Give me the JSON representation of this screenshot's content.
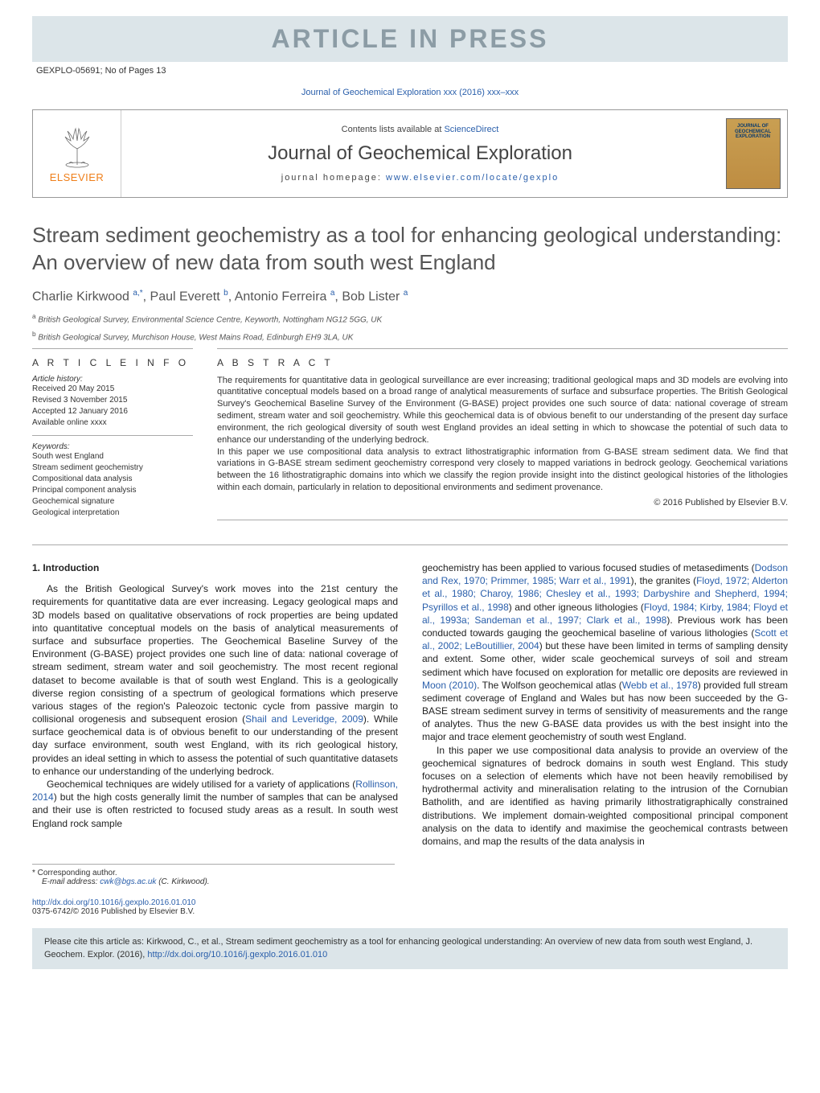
{
  "banner": {
    "text": "ARTICLE IN PRESS",
    "doc_id": "GEXPLO-05691; No of Pages 13"
  },
  "journal_ref": "Journal of Geochemical Exploration xxx (2016) xxx–xxx",
  "header": {
    "contents_prefix": "Contents lists available at ",
    "contents_link": "ScienceDirect",
    "journal_title": "Journal of Geochemical Exploration",
    "homepage_prefix": "journal homepage: ",
    "homepage_url": "www.elsevier.com/locate/gexplo",
    "elsevier_text": "ELSEVIER",
    "cover_title": "JOURNAL OF GEOCHEMICAL EXPLORATION",
    "cover_jge": "JGE"
  },
  "article": {
    "title": "Stream sediment geochemistry as a tool for enhancing geological understanding: An overview of new data from south west England",
    "authors_html": "Charlie Kirkwood <sup>a,*</sup>, Paul Everett <sup>b</sup>, Antonio Ferreira <sup>a</sup>, Bob Lister <sup>a</sup>",
    "aff_a": "a  British Geological Survey, Environmental Science Centre, Keyworth, Nottingham NG12 5GG, UK",
    "aff_b": "b  British Geological Survey, Murchison House, West Mains Road, Edinburgh EH9 3LA, UK"
  },
  "info": {
    "heading": "A R T I C L E   I N F O",
    "history_label": "Article history:",
    "received": "Received 20 May 2015",
    "revised": "Revised 3 November 2015",
    "accepted": "Accepted 12 January 2016",
    "available": "Available online xxxx",
    "keywords_label": "Keywords:",
    "keywords": [
      "South west England",
      "Stream sediment geochemistry",
      "Compositional data analysis",
      "Principal component analysis",
      "Geochemical signature",
      "Geological interpretation"
    ]
  },
  "abstract": {
    "heading": "A B S T R A C T",
    "para1": "The requirements for quantitative data in geological surveillance are ever increasing; traditional geological maps and 3D models are evolving into quantitative conceptual models based on a broad range of analytical measurements of surface and subsurface properties. The British Geological Survey's Geochemical Baseline Survey of the Environment (G-BASE) project provides one such source of data: national coverage of stream sediment, stream water and soil geochemistry. While this geochemical data is of obvious benefit to our understanding of the present day surface environment, the rich geological diversity of south west England provides an ideal setting in which to showcase the potential of such data to enhance our understanding of the underlying bedrock.",
    "para2": "In this paper we use compositional data analysis to extract lithostratigraphic information from G-BASE stream sediment data. We find that variations in G-BASE stream sediment geochemistry correspond very closely to mapped variations in bedrock geology. Geochemical variations between the 16 lithostratigraphic domains into which we classify the region provide insight into the distinct geological histories of the lithologies within each domain, particularly in relation to depositional environments and sediment provenance.",
    "copyright": "© 2016 Published by Elsevier B.V."
  },
  "body": {
    "section_title": "1. Introduction",
    "left_p1": "As the British Geological Survey's work moves into the 21st century the requirements for quantitative data are ever increasing. Legacy geological maps and 3D models based on qualitative observations of rock properties are being updated into quantitative conceptual models on the basis of analytical measurements of surface and subsurface properties. The Geochemical Baseline Survey of the Environment (G-BASE) project provides one such line of data: national coverage of stream sediment, stream water and soil geochemistry. The most recent regional dataset to become available is that of south west England. This is a geologically diverse region consisting of a spectrum of geological formations which preserve various stages of the region's Paleozoic tectonic cycle from passive margin to collisional orogenesis and subsequent erosion (",
    "left_p1_ref": "Shail and Leveridge, 2009",
    "left_p1_end": "). While surface geochemical data is of obvious benefit to our understanding of the present day surface environment, south west England, with its rich geological history, provides an ideal setting in which to assess the potential of such quantitative datasets to enhance our understanding of the underlying bedrock.",
    "left_p2_start": "Geochemical techniques are widely utilised for a variety of applications (",
    "left_p2_ref": "Rollinson, 2014",
    "left_p2_end": ") but the high costs generally limit the number of samples that can be analysed and their use is often restricted to focused study areas as a result. In south west England rock sample",
    "right_p1_start": "geochemistry has been applied to various focused studies of metasediments (",
    "right_p1_ref1": "Dodson and Rex, 1970; Primmer, 1985; Warr et al., 1991",
    "right_p1_mid1": "), the granites (",
    "right_p1_ref2": "Floyd, 1972; Alderton et al., 1980; Charoy, 1986; Chesley et al., 1993; Darbyshire and Shepherd, 1994; Psyrillos et al., 1998",
    "right_p1_mid2": ") and other igneous lithologies (",
    "right_p1_ref3": "Floyd, 1984; Kirby, 1984; Floyd et al., 1993a; Sandeman et al., 1997; Clark et al., 1998",
    "right_p1_mid3": "). Previous work has been conducted towards gauging the geochemical baseline of various lithologies (",
    "right_p1_ref4": "Scott et al., 2002; LeBoutillier, 2004",
    "right_p1_mid4": ") but these have been limited in terms of sampling density and extent. Some other, wider scale geochemical surveys of soil and stream sediment which have focused on exploration for metallic ore deposits are reviewed in ",
    "right_p1_ref5": "Moon (2010)",
    "right_p1_mid5": ". The Wolfson geochemical atlas (",
    "right_p1_ref6": "Webb et al., 1978",
    "right_p1_end": ") provided full stream sediment coverage of England and Wales but has now been succeeded by the G-BASE stream sediment survey in terms of sensitivity of measurements and the range of analytes. Thus the new G-BASE data provides us with the best insight into the major and trace element geochemistry of south west England.",
    "right_p2": "In this paper we use compositional data analysis to provide an overview of the geochemical signatures of bedrock domains in south west England. This study focuses on a selection of elements which have not been heavily remobilised by hydrothermal activity and mineralisation relating to the intrusion of the Cornubian Batholith, and are identified as having primarily lithostratigraphically constrained distributions. We implement domain-weighted compositional principal component analysis on the data to identify and maximise the geochemical contrasts between domains, and map the results of the data analysis in"
  },
  "footnote": {
    "corresponding": "*  Corresponding author.",
    "email_label": "E-mail address: ",
    "email": "cwk@bgs.ac.uk",
    "email_suffix": " (C. Kirkwood)."
  },
  "doi": {
    "url": "http://dx.doi.org/10.1016/j.gexplo.2016.01.010",
    "copyright": "0375-6742/© 2016 Published by Elsevier B.V."
  },
  "citation": {
    "text_start": "Please cite this article as: Kirkwood, C., et al., Stream sediment geochemistry as a tool for enhancing geological understanding: An overview of new data from south west England, J. Geochem. Explor. (2016), ",
    "url": "http://dx.doi.org/10.1016/j.gexplo.2016.01.010"
  }
}
